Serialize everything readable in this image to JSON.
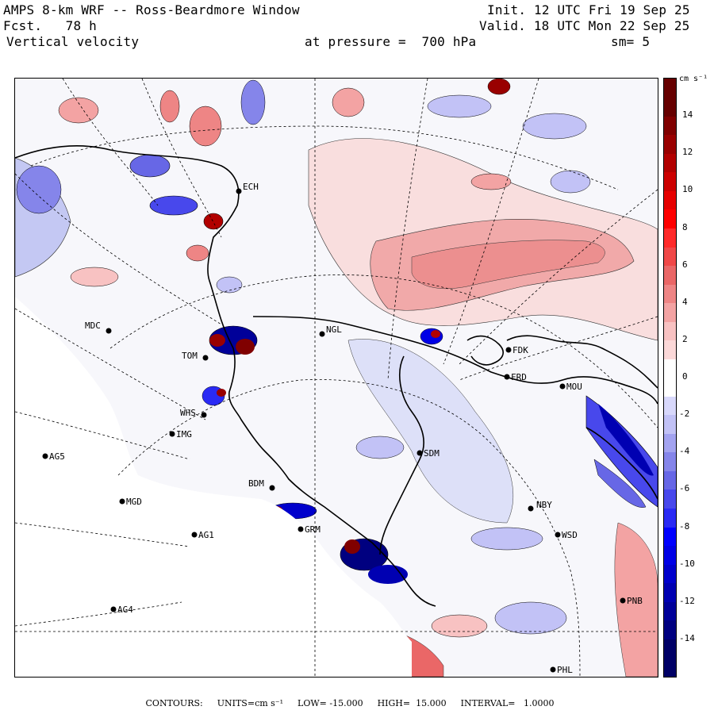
{
  "header": {
    "title": "AMPS 8-km WRF -- Ross-Beardmore Window",
    "forecast_label": "Fcst.",
    "forecast_hours": "78 h",
    "field": "Vertical velocity",
    "init": "Init. 12 UTC Fri 19 Sep 25",
    "valid": "Valid. 18 UTC Mon 22 Sep 25",
    "pressure_label": "at pressure =",
    "pressure_value": "700 hPa",
    "smoothing": "sm= 5"
  },
  "colorbar": {
    "units": "cm s⁻¹",
    "ticks": [
      "14",
      "12",
      "10",
      "8",
      "6",
      "4",
      "2",
      "0",
      "-2",
      "-4",
      "-6",
      "-8",
      "-10",
      "-12",
      "-14"
    ],
    "tick_values": [
      14,
      12,
      10,
      8,
      6,
      4,
      2,
      0,
      -2,
      -4,
      -6,
      -8,
      -10,
      -12,
      -14
    ],
    "min": -16,
    "max": 16,
    "positive_colors": [
      "#ffeeee",
      "#fbd8d8",
      "#f8c2c2",
      "#f3a3a3",
      "#ee8585",
      "#ea6767",
      "#f04848",
      "#ff2a2a",
      "#ff0000",
      "#e60000",
      "#cc0000",
      "#b20000",
      "#990000",
      "#800000",
      "#660000"
    ],
    "negative_colors": [
      "#eeeefe",
      "#d8d8fb",
      "#c2c2f6",
      "#a3a3f0",
      "#8585ea",
      "#6767e6",
      "#4848ec",
      "#2a2af4",
      "#0000ff",
      "#0000e6",
      "#0000cc",
      "#0000b2",
      "#000099",
      "#000080",
      "#000066"
    ]
  },
  "map": {
    "background_color": "#f7f7fb",
    "positive_fill": "#f7d0d0",
    "negative_fill": "#c4c8f3",
    "strong_positive": "#b80000",
    "strong_negative": "#00008a",
    "coastline_color": "#000000",
    "no_data_color": "#ffffff"
  },
  "stations": [
    {
      "name": "MDC"
    },
    {
      "name": "NGL"
    },
    {
      "name": "FDK"
    },
    {
      "name": "FRD"
    },
    {
      "name": "MOU"
    },
    {
      "name": "TOM"
    },
    {
      "name": "WHS"
    },
    {
      "name": "IMG"
    },
    {
      "name": "AG5"
    },
    {
      "name": "SDM"
    },
    {
      "name": "BDM"
    },
    {
      "name": "MGD"
    },
    {
      "name": "NBY"
    },
    {
      "name": "GRM"
    },
    {
      "name": "AG1"
    },
    {
      "name": "WSD"
    },
    {
      "name": "AG4"
    },
    {
      "name": "PNB"
    },
    {
      "name": "PHL"
    },
    {
      "name": "ECH"
    }
  ],
  "footer": {
    "contours": "CONTOURS:",
    "units": "UNITS=cm s⁻¹",
    "low": "LOW= -15.000",
    "high": "HIGH=  15.000",
    "interval": "INTERVAL=   1.0000"
  }
}
